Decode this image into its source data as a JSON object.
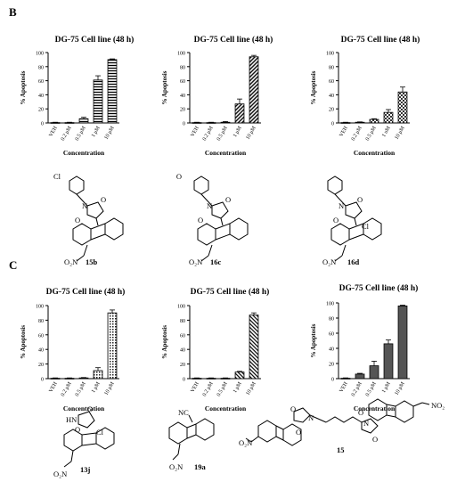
{
  "panels": [
    {
      "letter": "B"
    },
    {
      "letter": "C"
    }
  ],
  "chart_data": [
    {
      "type": "bar",
      "title": "DG-75 Cell line (48 h)",
      "xlabel": "Concentration",
      "ylabel": "% Apoptosis",
      "ylim": [
        0,
        100
      ],
      "yticks": [
        0,
        20,
        40,
        60,
        80,
        100
      ],
      "categories": [
        "VEH",
        "0.2 μM",
        "0.5 μM",
        "1 μM",
        "10 μM"
      ],
      "values": [
        0.5,
        0.5,
        6,
        61,
        90
      ],
      "errors": [
        0.5,
        0.5,
        2,
        6,
        1
      ],
      "pattern": "hlines"
    },
    {
      "type": "bar",
      "title": "DG-75 Cell line (48 h)",
      "xlabel": "Concentration",
      "ylabel": "% Apoptosis",
      "ylim": [
        0,
        100
      ],
      "yticks": [
        0,
        20,
        40,
        60,
        80,
        100
      ],
      "categories": [
        "VEH",
        "0.2 μM",
        "0.5 μM",
        "1 μM",
        "10 μM"
      ],
      "values": [
        0.5,
        0.5,
        1,
        27,
        94
      ],
      "errors": [
        0.5,
        0.5,
        1,
        7,
        2
      ],
      "pattern": "diag"
    },
    {
      "type": "bar",
      "title": "DG-75 Cell line (48 h)",
      "xlabel": "Concentration",
      "ylabel": "% Apoptosis",
      "ylim": [
        0,
        100
      ],
      "yticks": [
        0,
        20,
        40,
        60,
        80,
        100
      ],
      "categories": [
        "VEH",
        "0.2 μM",
        "0.5 μM",
        "1 uM",
        "10 μM"
      ],
      "values": [
        0.5,
        1,
        5,
        15,
        44
      ],
      "errors": [
        0.5,
        0.5,
        1,
        4,
        7
      ],
      "pattern": "checker"
    },
    {
      "type": "bar",
      "title": "DG-75 Cell line (48 h)",
      "xlabel": "Concentration",
      "ylabel": "% Apoptosis",
      "ylim": [
        0,
        100
      ],
      "yticks": [
        0,
        20,
        40,
        60,
        80,
        100
      ],
      "categories": [
        "VEH",
        "0.2 μM",
        "0.5 μM",
        "1 μM",
        "10 μM"
      ],
      "values": [
        0.5,
        0.5,
        1,
        11,
        90
      ],
      "errors": [
        0.5,
        0.5,
        0.5,
        4,
        4
      ],
      "pattern": "grid"
    },
    {
      "type": "bar",
      "title": "DG-75 Cell line (48 h)",
      "xlabel": "Concentration",
      "ylabel": "% Apoptosis",
      "ylim": [
        0,
        100
      ],
      "yticks": [
        0,
        20,
        40,
        60,
        80,
        100
      ],
      "categories": [
        "VEH",
        "0.2 μM",
        "0.5 μM",
        "1 μM",
        "10 μM"
      ],
      "values": [
        0.5,
        0.5,
        0.5,
        9,
        87
      ],
      "errors": [
        0.5,
        0.5,
        0.5,
        1,
        3
      ],
      "pattern": "diag2"
    },
    {
      "type": "bar",
      "title": "DG-75 Cell line (48 h)",
      "xlabel": "Concentration",
      "ylabel": "% Apoptosis",
      "ylim": [
        0,
        100
      ],
      "yticks": [
        0,
        20,
        40,
        60,
        80,
        100
      ],
      "categories": [
        "VEH",
        "0.2 μM",
        "0.5 μM",
        "1 μM",
        "10 μM"
      ],
      "values": [
        0.5,
        6,
        17,
        46,
        96
      ],
      "errors": [
        0.5,
        1,
        6,
        5,
        1
      ],
      "pattern": "solid"
    }
  ],
  "compounds": [
    {
      "label": "15b",
      "substituent": "Cl",
      "nitro": "O₂N"
    },
    {
      "label": "16c",
      "substituent": "O",
      "nitro": "O₂N"
    },
    {
      "label": "16d",
      "substituent": "Cl",
      "nitro": "O₂N"
    },
    {
      "label": "13j",
      "substituent": "Cl",
      "nitro": "O₂N",
      "nh": "HN"
    },
    {
      "label": "19a",
      "substituent": "NC",
      "nitro": "O₂N"
    },
    {
      "label": "15",
      "substituent": "NO₂",
      "nitro": "O₂N"
    }
  ],
  "atoms": {
    "N": "N",
    "O": "O"
  }
}
